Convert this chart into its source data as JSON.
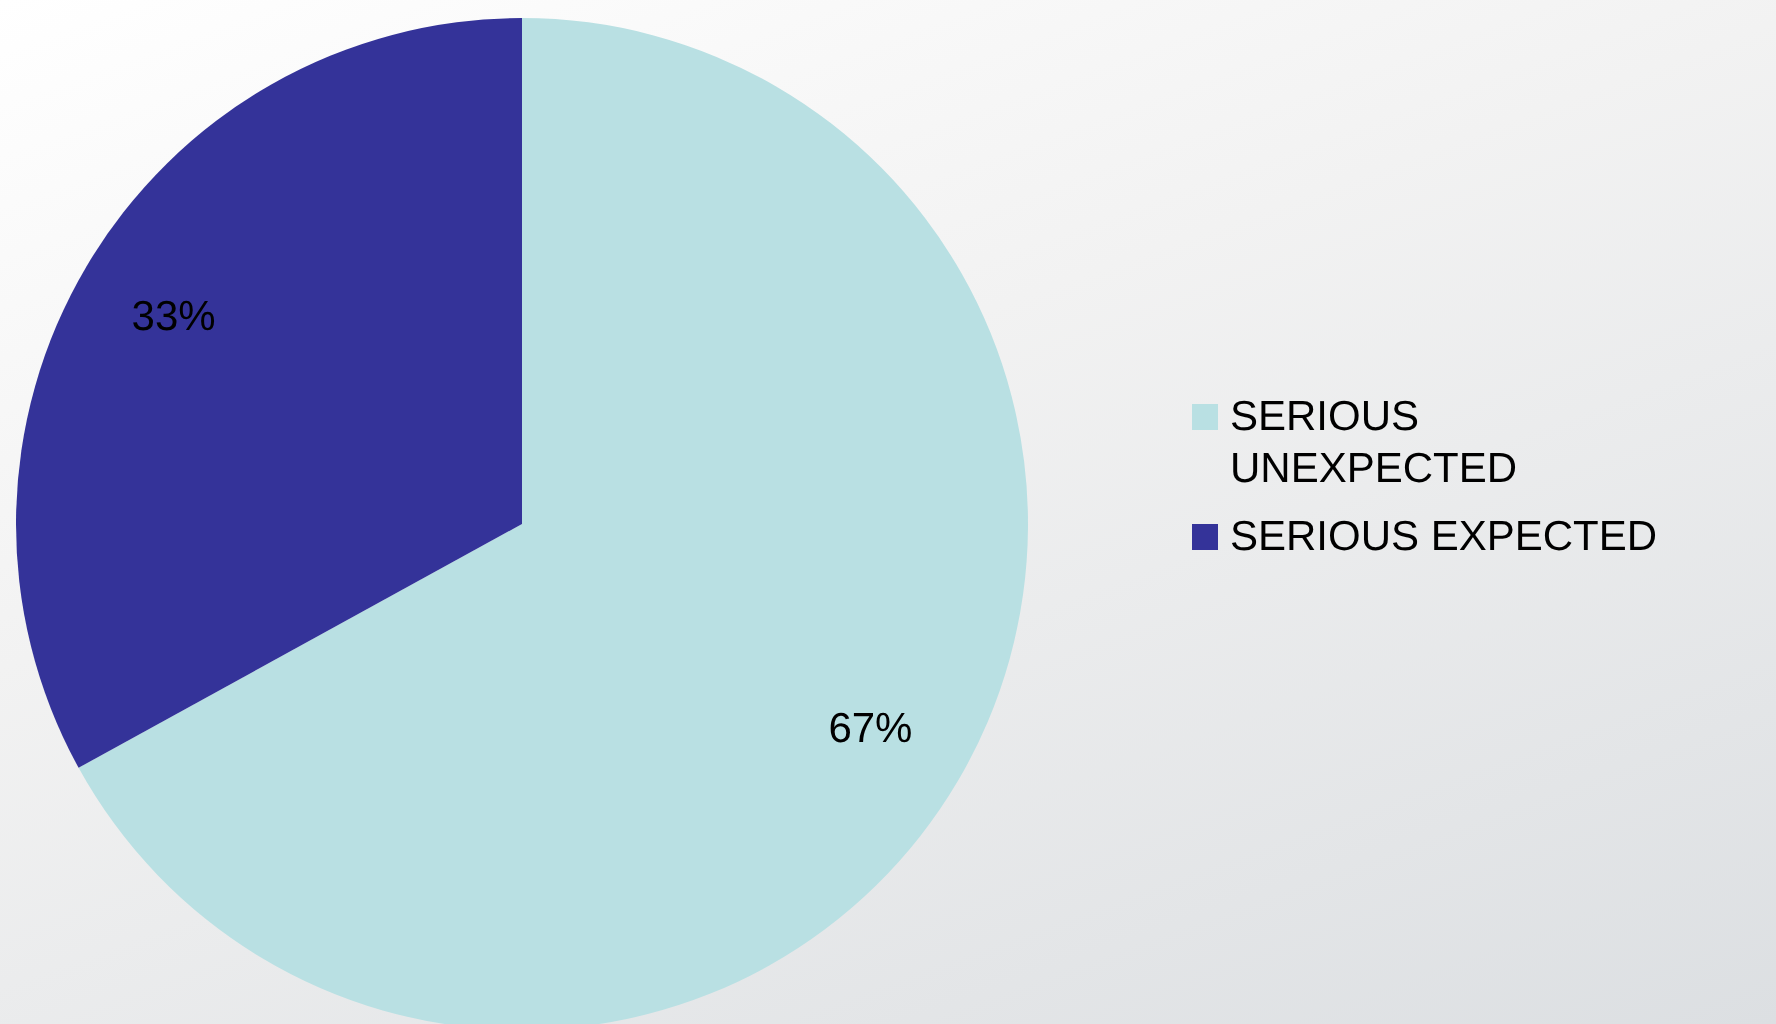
{
  "chart_data": {
    "type": "pie",
    "categories": [
      "SERIOUS UNEXPECTED",
      "SERIOUS EXPECTED"
    ],
    "values": [
      67,
      33
    ],
    "colors": [
      "#b9e0e3",
      "#343399"
    ],
    "value_labels": [
      "67%",
      "33%"
    ],
    "legend": "right"
  }
}
